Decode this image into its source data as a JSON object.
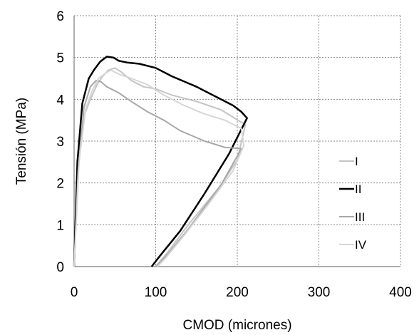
{
  "chart_data": {
    "type": "line",
    "title": "",
    "xlabel": "CMOD (micrones)",
    "ylabel": "Tensión (MPa)",
    "xlim": [
      0,
      400
    ],
    "ylim": [
      0,
      6
    ],
    "xticks": [
      "0",
      "100",
      "200",
      "300",
      "400"
    ],
    "yticks": [
      "0",
      "1",
      "2",
      "3",
      "4",
      "5",
      "6"
    ],
    "grid": "dashed",
    "legend_position": "right",
    "series": [
      {
        "name": "I",
        "color": "#c4c4c4",
        "width": 2,
        "points": [
          [
            0,
            0
          ],
          [
            5,
            2.5
          ],
          [
            12,
            3.6
          ],
          [
            20,
            4.0
          ],
          [
            28,
            4.35
          ],
          [
            35,
            4.55
          ],
          [
            42,
            4.7
          ],
          [
            50,
            4.75
          ],
          [
            58,
            4.65
          ],
          [
            70,
            4.45
          ],
          [
            85,
            4.3
          ],
          [
            100,
            4.25
          ],
          [
            120,
            4.1
          ],
          [
            150,
            3.95
          ],
          [
            180,
            3.75
          ],
          [
            205,
            3.45
          ],
          [
            210,
            3.4
          ],
          [
            200,
            2.55
          ],
          [
            180,
            1.95
          ],
          [
            140,
            1.0
          ],
          [
            115,
            0.35
          ],
          [
            100,
            0
          ]
        ]
      },
      {
        "name": "II",
        "color": "#000000",
        "width": 2.5,
        "points": [
          [
            0,
            0
          ],
          [
            4,
            2.5
          ],
          [
            10,
            3.9
          ],
          [
            18,
            4.5
          ],
          [
            25,
            4.72
          ],
          [
            32,
            4.9
          ],
          [
            40,
            5.02
          ],
          [
            48,
            5.0
          ],
          [
            55,
            4.92
          ],
          [
            65,
            4.88
          ],
          [
            80,
            4.85
          ],
          [
            100,
            4.75
          ],
          [
            120,
            4.55
          ],
          [
            150,
            4.3
          ],
          [
            175,
            4.05
          ],
          [
            195,
            3.85
          ],
          [
            205,
            3.7
          ],
          [
            212,
            3.55
          ],
          [
            190,
            2.7
          ],
          [
            160,
            1.75
          ],
          [
            130,
            0.85
          ],
          [
            105,
            0.25
          ],
          [
            95,
            0
          ]
        ]
      },
      {
        "name": "III",
        "color": "#a8a8a8",
        "width": 2,
        "points": [
          [
            0,
            0
          ],
          [
            5,
            2.3
          ],
          [
            12,
            3.8
          ],
          [
            20,
            4.3
          ],
          [
            27,
            4.45
          ],
          [
            33,
            4.42
          ],
          [
            40,
            4.3
          ],
          [
            55,
            4.15
          ],
          [
            70,
            3.95
          ],
          [
            90,
            3.7
          ],
          [
            110,
            3.5
          ],
          [
            130,
            3.25
          ],
          [
            160,
            3.0
          ],
          [
            185,
            2.85
          ],
          [
            205,
            2.82
          ],
          [
            180,
            1.95
          ],
          [
            140,
            0.9
          ],
          [
            115,
            0.3
          ],
          [
            100,
            0
          ]
        ]
      },
      {
        "name": "IV",
        "color": "#d6d6d6",
        "width": 2,
        "points": [
          [
            0,
            0
          ],
          [
            6,
            2.5
          ],
          [
            14,
            3.75
          ],
          [
            22,
            4.2
          ],
          [
            30,
            4.5
          ],
          [
            38,
            4.62
          ],
          [
            45,
            4.7
          ],
          [
            55,
            4.6
          ],
          [
            70,
            4.5
          ],
          [
            90,
            4.35
          ],
          [
            110,
            4.1
          ],
          [
            135,
            3.85
          ],
          [
            160,
            3.65
          ],
          [
            185,
            3.5
          ],
          [
            205,
            3.3
          ],
          [
            208,
            2.9
          ],
          [
            195,
            2.3
          ],
          [
            165,
            1.5
          ],
          [
            135,
            0.75
          ],
          [
            112,
            0.2
          ],
          [
            102,
            0
          ]
        ]
      }
    ]
  }
}
